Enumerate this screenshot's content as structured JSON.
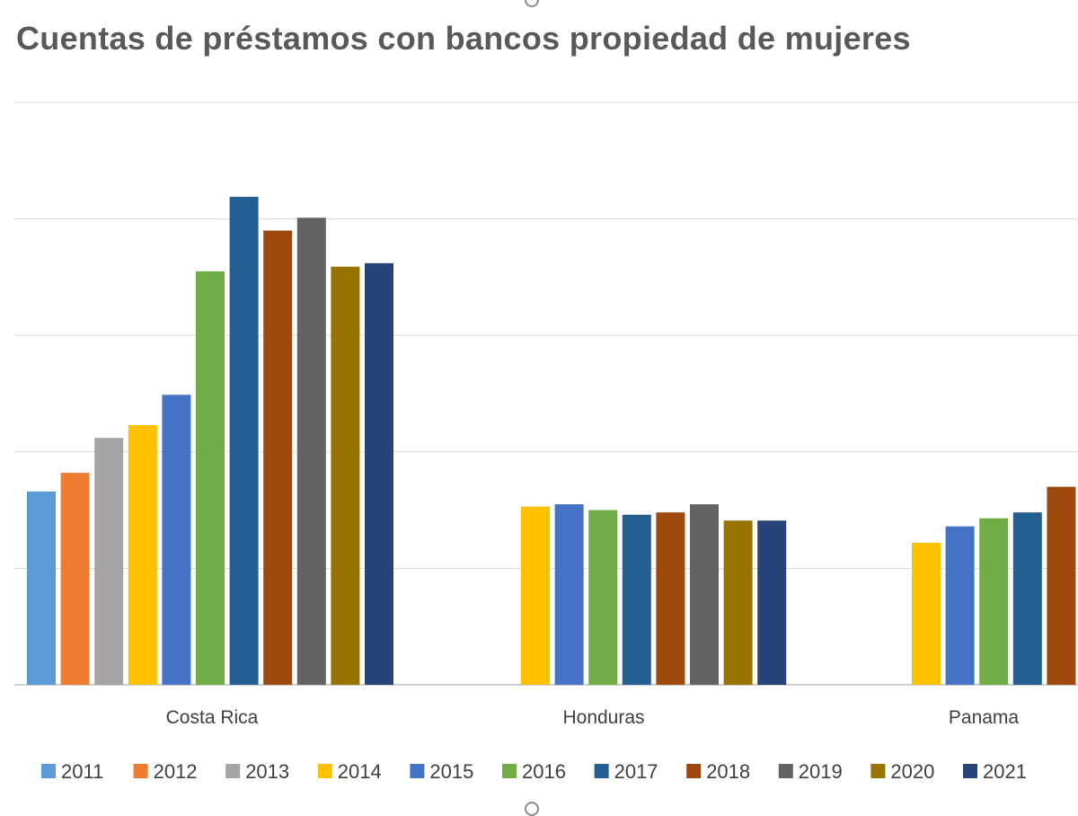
{
  "chart_data": {
    "type": "bar",
    "title": "Cuentas de préstamos con bancos propiedad de mujeres",
    "xlabel": "",
    "ylabel": "",
    "categories": [
      "Costa Rica",
      "Honduras",
      "Panama"
    ],
    "ylim": [
      0,
      5
    ],
    "grid": true,
    "legend_position": "bottom",
    "series": [
      {
        "name": "2011",
        "color": "#5B9BD5",
        "values": [
          1.66,
          null,
          null
        ]
      },
      {
        "name": "2012",
        "color": "#ED7D31",
        "values": [
          1.82,
          null,
          null
        ]
      },
      {
        "name": "2013",
        "color": "#A5A5A5",
        "values": [
          2.12,
          null,
          null
        ]
      },
      {
        "name": "2014",
        "color": "#FFC000",
        "values": [
          2.23,
          1.53,
          1.22
        ]
      },
      {
        "name": "2015",
        "color": "#4472C4",
        "values": [
          2.49,
          1.55,
          1.36
        ]
      },
      {
        "name": "2016",
        "color": "#70AD47",
        "values": [
          3.55,
          1.5,
          1.43
        ]
      },
      {
        "name": "2017",
        "color": "#255E91",
        "values": [
          4.19,
          1.46,
          1.48
        ]
      },
      {
        "name": "2018",
        "color": "#9E480E",
        "values": [
          3.9,
          1.48,
          1.7
        ]
      },
      {
        "name": "2019",
        "color": "#636363",
        "values": [
          4.01,
          1.55,
          null
        ]
      },
      {
        "name": "2020",
        "color": "#997300",
        "values": [
          3.59,
          1.41,
          null
        ]
      },
      {
        "name": "2021",
        "color": "#264478",
        "values": [
          3.62,
          1.41,
          null
        ]
      }
    ]
  }
}
